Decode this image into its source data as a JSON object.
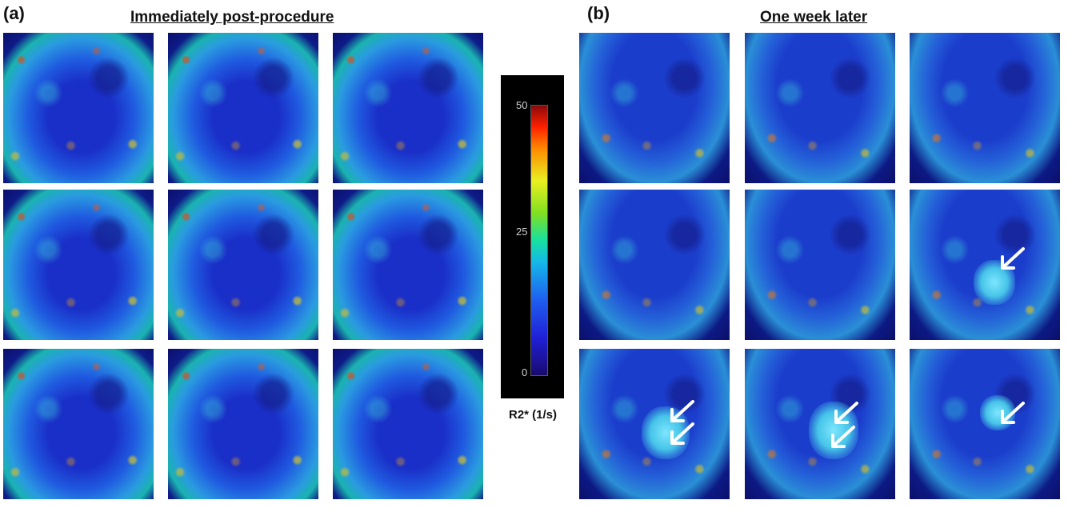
{
  "figure": {
    "panel_a_label": "(a)",
    "panel_b_label": "(b)",
    "panel_a_title": "Immediately post-procedure",
    "panel_b_title": "One week later"
  },
  "colorbar": {
    "max_label": "50",
    "mid_label": "25",
    "min_label": "0",
    "title": "R2* (1/s)",
    "colors": [
      "#1a0a6e",
      "#2020d8",
      "#14b8e8",
      "#7ee020",
      "#e8f020",
      "#ff8a00",
      "#8a0a0a"
    ]
  },
  "tiles": {
    "panel_a": [
      "Immediately post-procedure slice 1",
      "Immediately post-procedure slice 2",
      "Immediately post-procedure slice 3",
      "Immediately post-procedure slice 4",
      "Immediately post-procedure slice 5",
      "Immediately post-procedure slice 6",
      "Immediately post-procedure slice 7",
      "Immediately post-procedure slice 8",
      "Immediately post-procedure slice 9"
    ],
    "panel_b": [
      "One week later slice 1",
      "One week later slice 2",
      "One week later slice 3",
      "One week later slice 4",
      "One week later slice 5",
      "One week later slice 6",
      "One week later slice 7",
      "One week later slice 8",
      "One week later slice 9"
    ]
  }
}
